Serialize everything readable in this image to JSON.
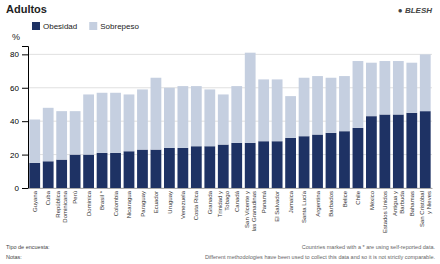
{
  "chart_data": {
    "type": "bar",
    "title": "Adultos",
    "y_label": "%",
    "stacked": true,
    "grid": true,
    "legend": "upper left",
    "ylim": [
      0,
      85
    ],
    "yticks": [
      0,
      20,
      40,
      60,
      80
    ],
    "categories": [
      "Guyana",
      "Cuba",
      "República\nDominicana",
      "Perú",
      "Dominica",
      "Brasil *",
      "Colombia",
      "Nicaragua",
      "Paraguay",
      "Ecuador",
      "Uruguay",
      "Venezuela",
      "Costa Rica",
      "Granada",
      "Trinidad y\nTobago",
      "Canadá",
      "San Vicente y\nlas Granadinas",
      "Panamá",
      "El Salvador",
      "Jamaica",
      "Santa Lucía",
      "Argentina",
      "Barbados",
      "Belice",
      "Chile",
      "México",
      "Estados Unidos",
      "Antigua y\nBarbuda",
      "Bahamas",
      "San Cristóbal\ny Nieves"
    ],
    "series": [
      {
        "name": "Obesidad",
        "color": "#1e3264",
        "values": [
          15,
          16,
          17,
          20,
          20,
          21,
          21,
          22,
          23,
          23,
          24,
          24,
          25,
          25,
          26,
          27,
          27,
          28,
          28,
          30,
          31,
          32,
          33,
          34,
          36,
          43,
          44,
          44,
          45,
          46
        ]
      },
      {
        "name": "Sobrepeso",
        "color": "#c5cfe0",
        "values": [
          26,
          32,
          29,
          26,
          36,
          36,
          36,
          34,
          36,
          43,
          36,
          37,
          36,
          34,
          30,
          34,
          54,
          37,
          37,
          25,
          35,
          35,
          33,
          33,
          40,
          32,
          32,
          32,
          30,
          34
        ]
      }
    ],
    "annotations": [
      "Tipo de encuesta:",
      "Notas:",
      "Countries marked with a * are using self-reported data.",
      "Different methodologies have been used to collect this data and so it is not strictly comparable.",
      "● BLESH"
    ]
  }
}
